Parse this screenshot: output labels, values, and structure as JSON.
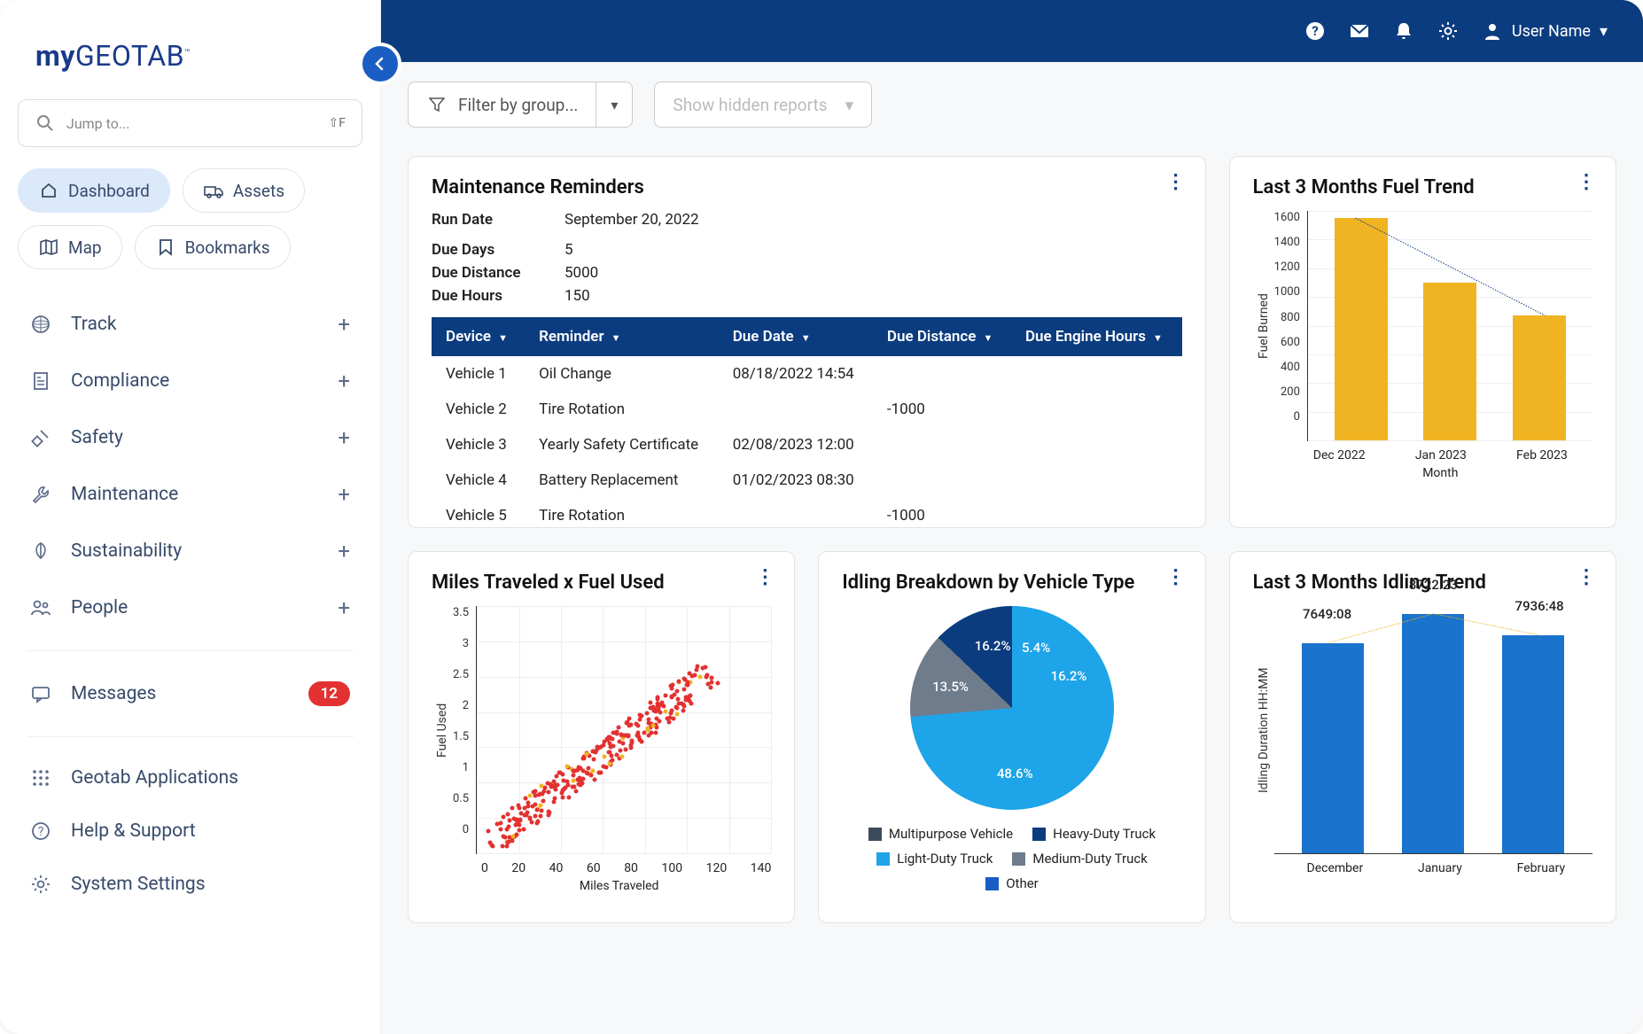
{
  "brand": {
    "part1": "my",
    "part2": "GEOTAB",
    "tm": "™"
  },
  "search": {
    "placeholder": "Jump to...",
    "kbd": "⇧F"
  },
  "tabs": [
    {
      "label": "Dashboard",
      "active": true
    },
    {
      "label": "Assets",
      "active": false
    },
    {
      "label": "Map",
      "active": false
    },
    {
      "label": "Bookmarks",
      "active": false
    }
  ],
  "nav": [
    {
      "label": "Track",
      "expandable": true
    },
    {
      "label": "Compliance",
      "expandable": true
    },
    {
      "label": "Safety",
      "expandable": true
    },
    {
      "label": "Maintenance",
      "expandable": true
    },
    {
      "label": "Sustainability",
      "expandable": true
    },
    {
      "label": "People",
      "expandable": true
    }
  ],
  "nav2": [
    {
      "label": "Messages",
      "badge": "12"
    }
  ],
  "nav3": [
    {
      "label": "Geotab Applications"
    },
    {
      "label": "Help & Support"
    },
    {
      "label": "System Settings"
    }
  ],
  "topbar": {
    "user_label": "User Name"
  },
  "filters": {
    "group": "Filter by group...",
    "hidden": "Show hidden reports"
  },
  "maintenance": {
    "title": "Maintenance Reminders",
    "meta": [
      {
        "k": "Run Date",
        "v": "September 20, 2022"
      },
      {
        "k": "Due Days",
        "v": "5"
      },
      {
        "k": "Due Distance",
        "v": "5000"
      },
      {
        "k": "Due Hours",
        "v": "150"
      }
    ],
    "columns": [
      "Device",
      "Reminder",
      "Due Date",
      "Due Distance",
      "Due Engine Hours"
    ],
    "rows": [
      [
        "Vehicle 1",
        "Oil Change",
        "08/18/2022 14:54",
        "",
        ""
      ],
      [
        "Vehicle 2",
        "Tire Rotation",
        "",
        "-1000",
        ""
      ],
      [
        "Vehicle 3",
        "Yearly Safety Certificate",
        "02/08/2023 12:00",
        "",
        ""
      ],
      [
        "Vehicle 4",
        "Battery Replacement",
        "01/02/2023 08:30",
        "",
        ""
      ],
      [
        "Vehicle 5",
        "Tire Rotation",
        "",
        "-1000",
        ""
      ]
    ]
  },
  "fuel_chart": {
    "title": "Last 3 Months Fuel Trend",
    "type": "bar",
    "ylabel": "Fuel Burned",
    "xlabel": "Month",
    "ylim": [
      0,
      1600
    ],
    "ytick_step": 200,
    "categories": [
      "Dec 2022",
      "Jan 2023",
      "Feb 2023"
    ],
    "values": [
      1550,
      1100,
      870
    ],
    "bar_color": "#f0b423",
    "trend_color": "#0b3c7f",
    "trend_style": "dotted",
    "grid_color": "#eeeeee",
    "background_color": "#ffffff"
  },
  "scatter": {
    "title": "Miles Traveled x Fuel Used",
    "type": "scatter",
    "xlabel": "Miles Traveled",
    "ylabel": "Fuel Used",
    "xlim": [
      0,
      140
    ],
    "xtick_step": 20,
    "ylim": [
      0,
      3.5
    ],
    "ytick_step": 0.5,
    "colors": {
      "main": "#e33131",
      "outlier": "#f0b423"
    },
    "grid_color": "#eeeeee",
    "n_points": 300
  },
  "pie": {
    "title": "Idling Breakdown by Vehicle Type",
    "type": "pie",
    "slices": [
      {
        "label": "Light-Duty Truck",
        "pct": 48.6,
        "color": "#1ea4e8"
      },
      {
        "label": "Medium-Duty Truck",
        "pct": 13.5,
        "color": "#6e7c8c"
      },
      {
        "label": "Heavy-Duty Truck",
        "pct": 16.2,
        "color": "#0b3c7f"
      },
      {
        "label": "Other",
        "pct": 5.4,
        "color": "#1a5ec4"
      },
      {
        "label": "Multipurpose Vehicle",
        "pct": 16.2,
        "color": "#3b4a5c"
      }
    ],
    "legend_order": [
      "Multipurpose Vehicle",
      "Heavy-Duty Truck",
      "Light-Duty Truck",
      "Medium-Duty Truck",
      "Other"
    ]
  },
  "idling_chart": {
    "title": "Last 3 Months Idling Trend",
    "type": "bar",
    "ylabel": "Idling Duration HH:MM",
    "categories": [
      "December",
      "January",
      "February"
    ],
    "labels": [
      "7649:08",
      "8722:23",
      "7936:48"
    ],
    "values": [
      7649,
      8722,
      7936
    ],
    "ymax": 9000,
    "bar_color": "#1a73cc",
    "trend_color": "#f0b423",
    "trend_style": "dotted"
  },
  "colors": {
    "brand_blue": "#0b3c7f",
    "accent_blue": "#1a5ec4",
    "sidebar_text": "#384a6a",
    "badge_red": "#e33131"
  }
}
